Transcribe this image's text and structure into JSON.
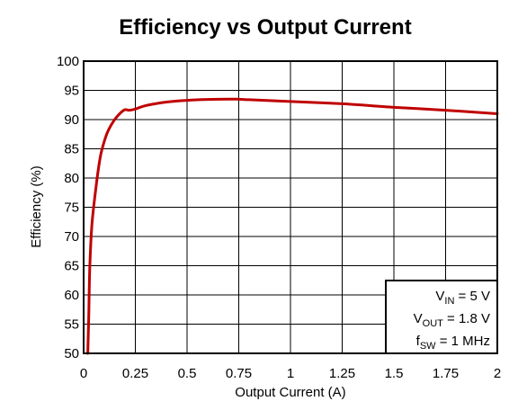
{
  "chart_data": {
    "type": "line",
    "title": "Efficiency vs Output Current",
    "xlabel": "Output Current (A)",
    "ylabel": "Efficiency (%)",
    "xlim": [
      0,
      2
    ],
    "ylim": [
      50,
      100
    ],
    "x_ticks": [
      "0",
      "0.25",
      "0.5",
      "0.75",
      "1",
      "1.25",
      "1.5",
      "1.75",
      "2"
    ],
    "y_ticks": [
      "50",
      "55",
      "60",
      "65",
      "70",
      "75",
      "80",
      "85",
      "90",
      "95",
      "100"
    ],
    "grid": true,
    "series": [
      {
        "color": "#c00000",
        "x": [
          0.02,
          0.025,
          0.03,
          0.04,
          0.06,
          0.08,
          0.1,
          0.12,
          0.15,
          0.18,
          0.2,
          0.22,
          0.25,
          0.3,
          0.4,
          0.5,
          0.6,
          0.7,
          0.75,
          0.8,
          1.0,
          1.25,
          1.5,
          1.75,
          2.0
        ],
        "y": [
          50,
          57,
          65,
          72,
          78.5,
          83.5,
          86.3,
          88.2,
          90.0,
          91.2,
          91.7,
          91.6,
          91.8,
          92.4,
          93.0,
          93.3,
          93.45,
          93.5,
          93.5,
          93.4,
          93.1,
          92.7,
          92.1,
          91.6,
          91.0
        ]
      }
    ],
    "annotation": {
      "lines": [
        {
          "main": "V",
          "sub": "IN",
          "rest": " = 5 V"
        },
        {
          "main": "V",
          "sub": "OUT",
          "rest": " = 1.8 V"
        },
        {
          "main": "f",
          "sub": "SW",
          "rest": " = 1 MHz"
        }
      ],
      "placement": "bottom-right"
    }
  }
}
